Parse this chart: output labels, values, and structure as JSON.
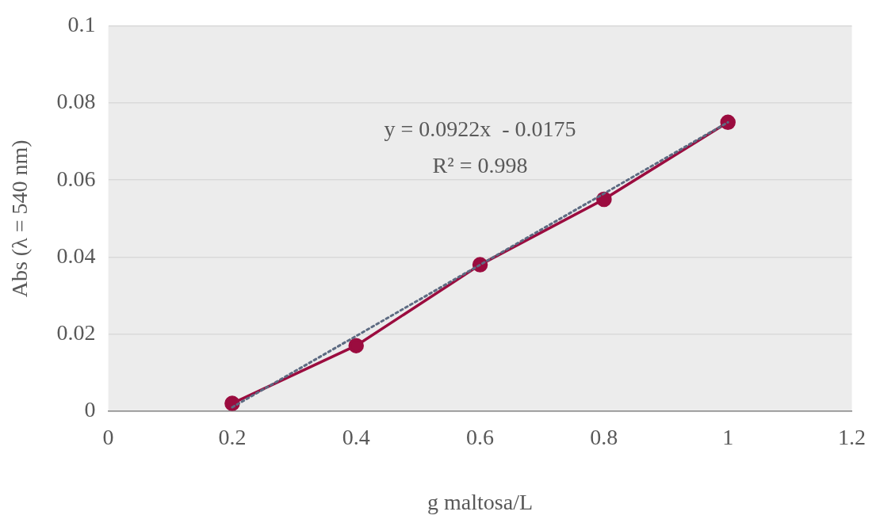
{
  "chart_data": {
    "type": "line",
    "xlabel": "g maltosa/L",
    "ylabel": "Abs (λ = 540 nm)",
    "x": [
      0.2,
      0.4,
      0.6,
      0.8,
      1.0
    ],
    "series": [
      {
        "color": "#9b0c3f",
        "values": [
          0.002,
          0.017,
          0.038,
          0.055,
          0.075
        ]
      },
      {
        "type": "line",
        "color": "#5d6b82",
        "line_style": "dotted",
        "marker": "none",
        "x": [
          0.2,
          1.0
        ],
        "values": [
          0.001,
          0.075
        ]
      }
    ],
    "annotations": [
      "y = 0.0922x  - 0.0175",
      "R² = 0.998"
    ],
    "xlim": [
      0,
      1.2
    ],
    "xticks": [
      0,
      0.2,
      0.4,
      0.6,
      0.8,
      1,
      1.2
    ],
    "ylim": [
      0,
      0.1
    ],
    "yticks": [
      0,
      0.02,
      0.04,
      0.06,
      0.08,
      0.1
    ],
    "grid": "y",
    "marker": "circle",
    "line_style": "solid",
    "legend": false
  }
}
